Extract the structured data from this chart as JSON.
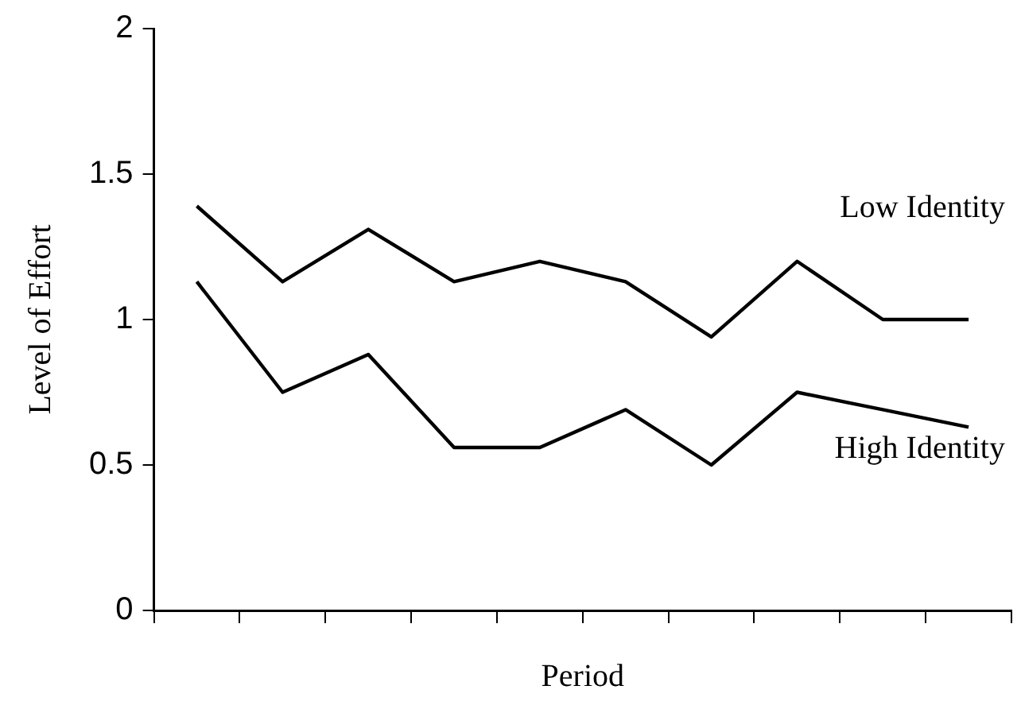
{
  "chart_data": {
    "type": "line",
    "xlabel": "Period",
    "ylabel": "Level of Effort",
    "categories": [
      null,
      null,
      null,
      null,
      null,
      null,
      null,
      null,
      null,
      null
    ],
    "series": [
      {
        "name": "Low Identity",
        "color": "#000000",
        "values": [
          1.39,
          1.13,
          1.31,
          1.13,
          1.2,
          1.13,
          0.94,
          1.2,
          1.0,
          1.0
        ]
      },
      {
        "name": "High Identity",
        "color": "#000000",
        "values": [
          1.13,
          0.75,
          0.88,
          0.56,
          0.56,
          0.69,
          0.5,
          0.75,
          0.69,
          0.63
        ]
      }
    ],
    "ylim": [
      0,
      2
    ],
    "yticks": [
      0,
      0.5,
      1,
      1.5,
      2
    ],
    "grid": false,
    "legend": false,
    "marker": "none",
    "line_style": "solid",
    "tick_labels": "y"
  }
}
